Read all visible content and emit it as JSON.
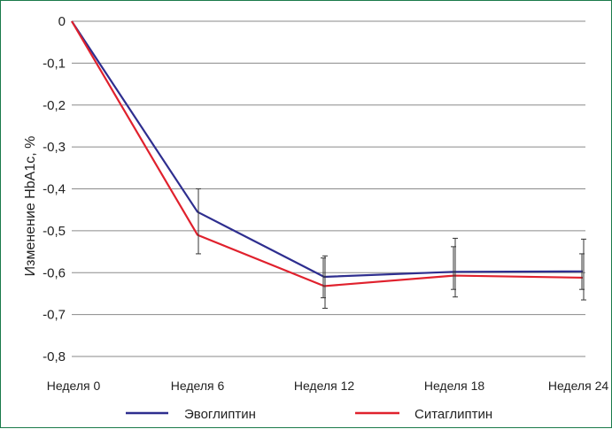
{
  "chart_data": {
    "type": "line",
    "categories": [
      "Неделя 0",
      "Неделя 6",
      "Неделя 12",
      "Неделя 18",
      "Неделя 24"
    ],
    "ylabel": "Изменение HbA1c, %",
    "ylim": [
      -0.8,
      0
    ],
    "yticks": [
      0,
      -0.1,
      -0.2,
      -0.3,
      -0.4,
      -0.5,
      -0.6,
      -0.7,
      -0.8
    ],
    "ytick_labels": [
      "0",
      "-0,1",
      "-0,2",
      "-0,3",
      "-0,4",
      "-0,5",
      "-0,6",
      "-0,7",
      "-0,8"
    ],
    "grid": true,
    "legend_position": "bottom",
    "series": [
      {
        "name": "Эвоглиптин",
        "color": "#2e2e8f",
        "values": [
          0,
          -0.455,
          -0.61,
          -0.598,
          -0.597
        ],
        "error_low": [
          null,
          -0.555,
          -0.685,
          -0.658,
          -0.665
        ],
        "error_high": [
          null,
          -0.4,
          -0.56,
          -0.518,
          -0.52
        ]
      },
      {
        "name": "Ситаглиптин",
        "color": "#e0212d",
        "values": [
          0,
          -0.51,
          -0.632,
          -0.607,
          -0.612
        ],
        "error_low": [
          null,
          null,
          -0.66,
          -0.64,
          -0.64
        ],
        "error_high": [
          null,
          null,
          -0.565,
          -0.538,
          -0.555
        ]
      }
    ]
  }
}
